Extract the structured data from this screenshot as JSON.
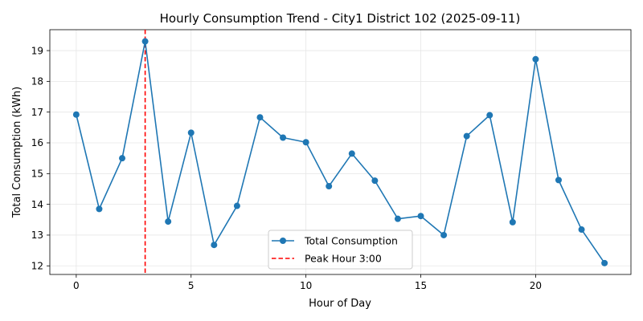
{
  "chart_data": {
    "type": "line",
    "title": "Hourly Consumption Trend - City1 District 102 (2025-09-11)",
    "xlabel": "Hour of Day",
    "ylabel": "Total Consumption (kWh)",
    "xlim": [
      -1.15,
      24.15
    ],
    "ylim": [
      11.72,
      19.68
    ],
    "xticks": [
      0,
      5,
      10,
      15,
      20
    ],
    "yticks": [
      12,
      13,
      14,
      15,
      16,
      17,
      18,
      19
    ],
    "grid": true,
    "legend_position": "lower center",
    "series": [
      {
        "name": "Total Consumption",
        "color": "#1f77b4",
        "marker": "circle",
        "x": [
          0,
          1,
          2,
          3,
          4,
          5,
          6,
          7,
          8,
          9,
          10,
          11,
          12,
          13,
          14,
          15,
          16,
          17,
          18,
          19,
          20,
          21,
          22,
          23
        ],
        "y": [
          16.92,
          13.85,
          15.5,
          19.3,
          13.44,
          16.33,
          12.68,
          13.95,
          16.83,
          16.17,
          16.02,
          14.59,
          15.65,
          14.77,
          13.53,
          13.62,
          13.0,
          16.22,
          16.9,
          13.42,
          18.72,
          14.79,
          13.18,
          12.09
        ]
      }
    ],
    "reference_lines": [
      {
        "orientation": "vertical",
        "x": 3,
        "name": "Peak Hour 3:00",
        "color": "#ff0000",
        "style": "dashed"
      }
    ]
  }
}
